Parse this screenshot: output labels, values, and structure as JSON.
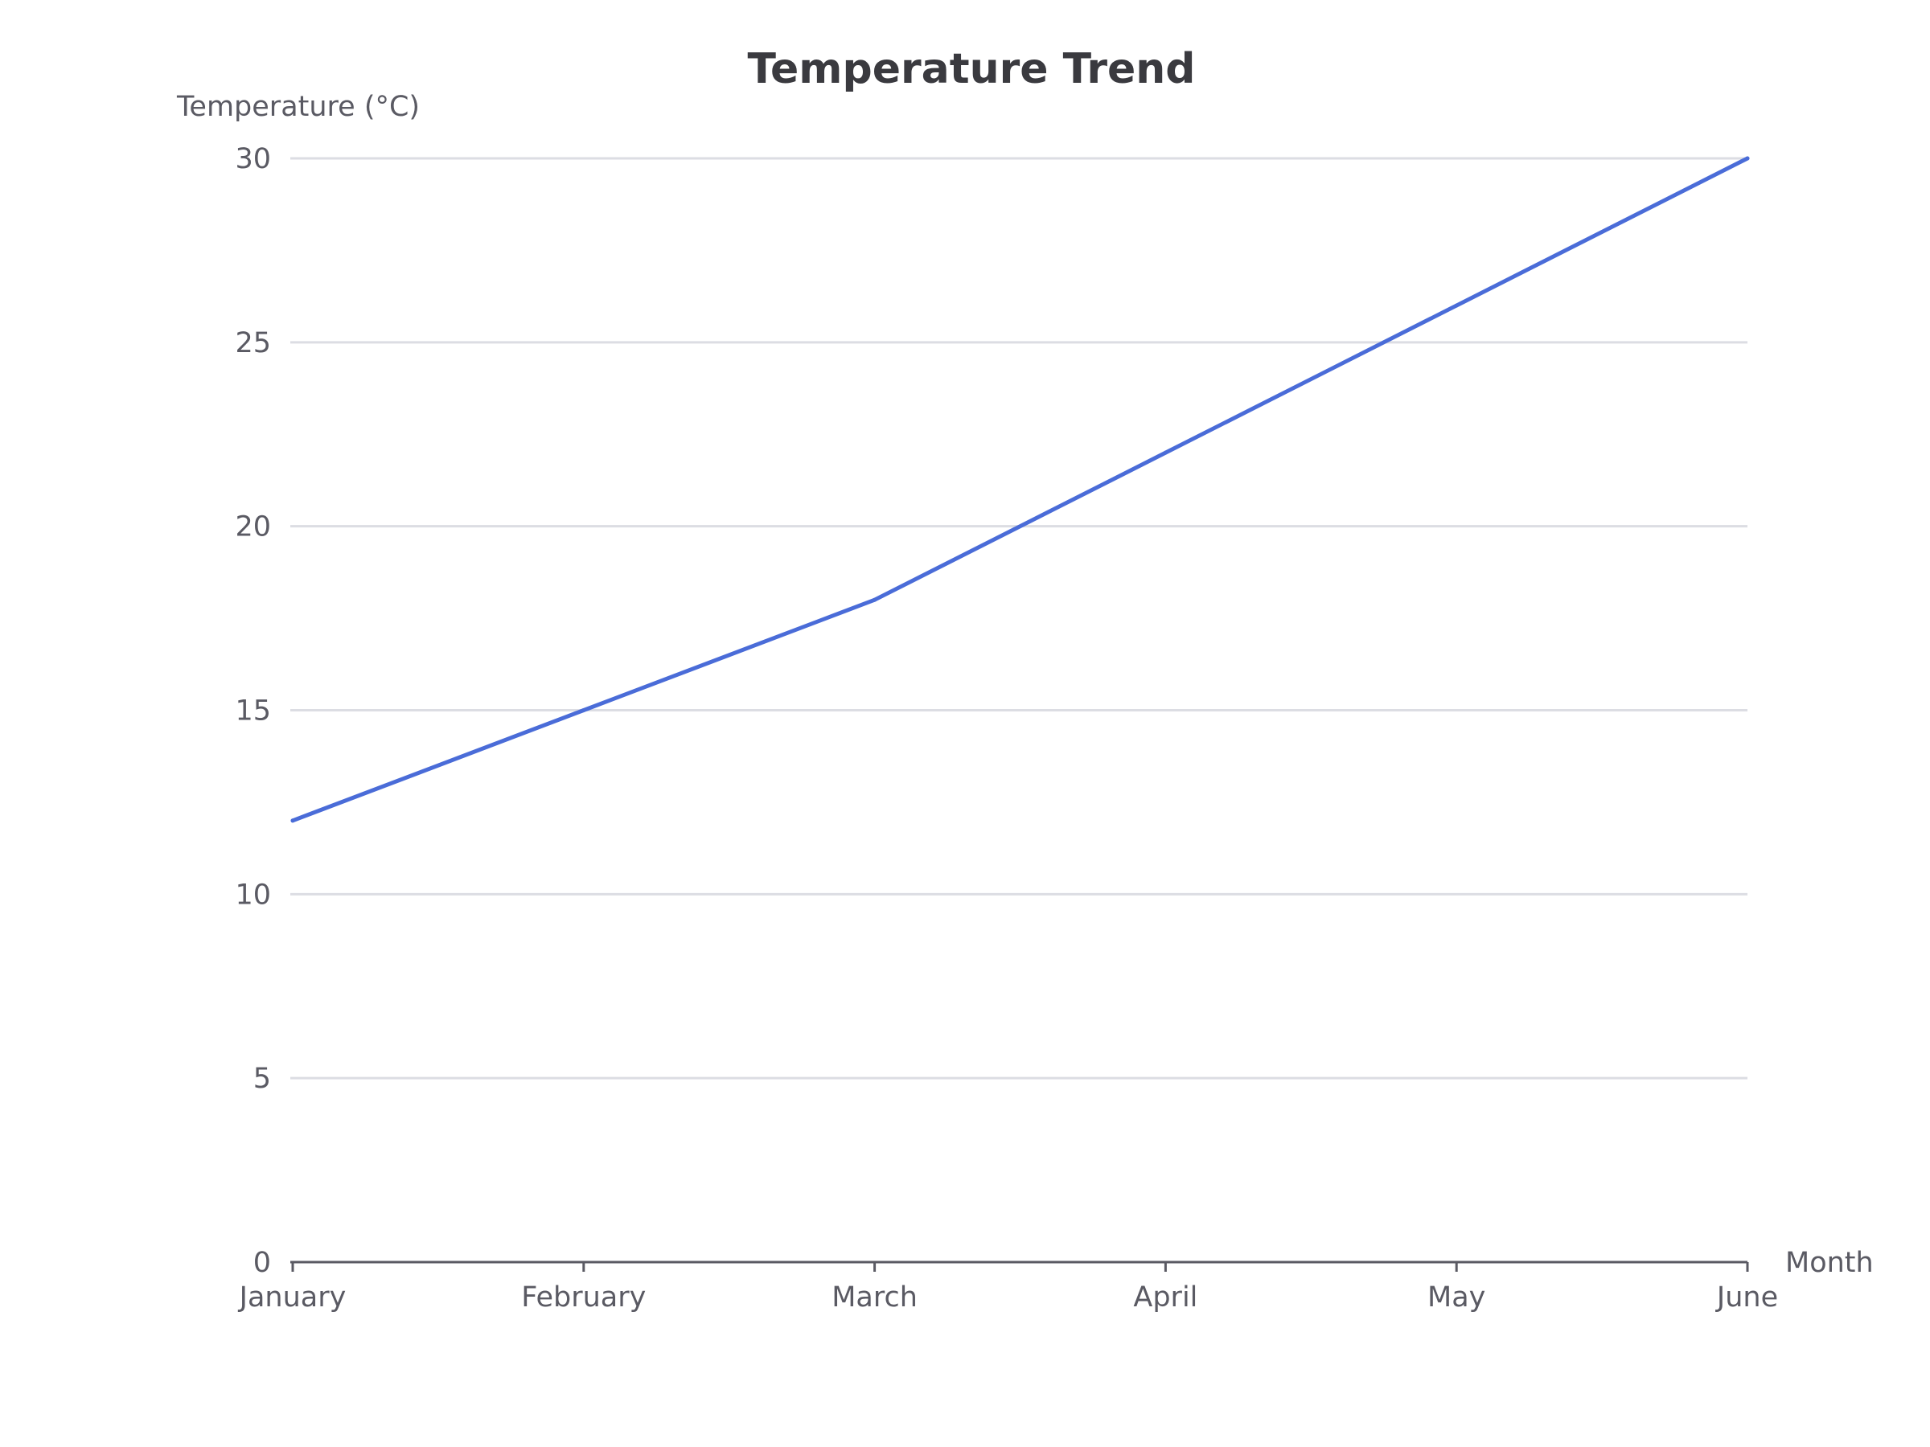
{
  "chart_data": {
    "type": "line",
    "title": "Temperature Trend",
    "xlabel": "Month",
    "ylabel": "Temperature (°C)",
    "categories": [
      "January",
      "February",
      "March",
      "April",
      "May",
      "June"
    ],
    "series": [
      {
        "values": [
          12,
          15,
          18,
          22,
          26,
          30
        ],
        "color": "#4a6cd8"
      }
    ],
    "ylim": [
      0,
      30
    ],
    "yticks": [
      0,
      5,
      10,
      15,
      20,
      25,
      30
    ],
    "grid": true,
    "legend": "none"
  }
}
